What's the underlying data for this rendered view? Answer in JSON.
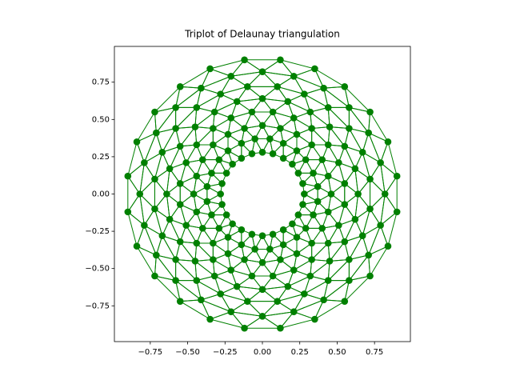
{
  "chart_data": {
    "type": "triplot",
    "title": "Triplot of Delaunay triangulation",
    "color": "#008000",
    "xlim": [
      -0.99,
      0.99
    ],
    "ylim": [
      -0.99,
      0.99
    ],
    "xticks": [
      {
        "value": -0.75,
        "label": "−0.75"
      },
      {
        "value": -0.5,
        "label": "−0.50"
      },
      {
        "value": -0.25,
        "label": "−0.25"
      },
      {
        "value": 0,
        "label": "0.00"
      },
      0.25,
      {
        "value": 0.5,
        "label": "0.50"
      },
      0.75
    ],
    "yticks": [
      {
        "value": -0.75,
        "label": "−0.75"
      },
      {
        "value": -0.5,
        "label": "−0.50"
      },
      {
        "value": -0.25,
        "label": "−0.25"
      },
      {
        "value": 0,
        "label": "0.00"
      },
      0.25,
      {
        "value": 0.5,
        "label": "0.50"
      },
      0.75
    ],
    "x": [
      [
        0.28,
        0.27,
        0.24,
        0.2,
        0.14,
        0.07,
        0,
        -0.07,
        -0.14,
        -0.2,
        -0.24,
        -0.27,
        -0.28,
        -0.27,
        -0.24,
        -0.2,
        -0.14,
        -0.07,
        0,
        0.07,
        0.14,
        0.2,
        0.24,
        0.27
      ],
      [
        0.37,
        0.34,
        0.29,
        0.23,
        0.14,
        0.05,
        -0.05,
        -0.14,
        -0.23,
        -0.29,
        -0.34,
        -0.37,
        -0.37,
        -0.34,
        -0.29,
        -0.23,
        -0.14,
        -0.05,
        0.05,
        0.14,
        0.23,
        0.29,
        0.34,
        0.37
      ],
      [
        0.46,
        0.44,
        0.4,
        0.33,
        0.23,
        0.12,
        0,
        -0.12,
        -0.23,
        -0.33,
        -0.4,
        -0.44,
        -0.46,
        -0.44,
        -0.4,
        -0.33,
        -0.23,
        -0.12,
        0,
        0.12,
        0.23,
        0.33,
        0.4,
        0.44
      ],
      [
        0.55,
        0.51,
        0.44,
        0.33,
        0.21,
        0.07,
        -0.07,
        -0.21,
        -0.33,
        -0.44,
        -0.51,
        -0.55,
        -0.55,
        -0.51,
        -0.44,
        -0.33,
        -0.21,
        -0.07,
        0.07,
        0.21,
        0.33,
        0.44,
        0.51,
        0.55
      ],
      [
        0.64,
        0.62,
        0.55,
        0.45,
        0.32,
        0.17,
        0,
        -0.17,
        -0.32,
        -0.45,
        -0.55,
        -0.62,
        -0.64,
        -0.62,
        -0.55,
        -0.45,
        -0.32,
        -0.17,
        0,
        0.17,
        0.32,
        0.45,
        0.55,
        0.62
      ],
      [
        0.72,
        0.67,
        0.58,
        0.44,
        0.28,
        0.1,
        -0.1,
        -0.28,
        -0.44,
        -0.58,
        -0.67,
        -0.72,
        -0.72,
        -0.67,
        -0.58,
        -0.44,
        -0.28,
        -0.1,
        0.1,
        0.28,
        0.44,
        0.58,
        0.67,
        0.72
      ],
      [
        0.82,
        0.79,
        0.71,
        0.58,
        0.41,
        0.21,
        0,
        -0.21,
        -0.41,
        -0.58,
        -0.71,
        -0.79,
        -0.82,
        -0.79,
        -0.71,
        -0.58,
        -0.41,
        -0.21,
        0,
        0.21,
        0.41,
        0.58,
        0.71,
        0.79
      ],
      [
        0.9,
        0.84,
        0.72,
        0.55,
        0.35,
        0.12,
        -0.12,
        -0.35,
        -0.55,
        -0.72,
        -0.84,
        -0.9,
        -0.9,
        -0.84,
        -0.72,
        -0.55,
        -0.35,
        -0.12,
        0.12,
        0.35,
        0.55,
        0.72,
        0.84,
        0.9
      ]
    ],
    "y": [
      [
        0,
        0.07,
        0.14,
        0.2,
        0.24,
        0.27,
        0.28,
        0.27,
        0.24,
        0.2,
        0.14,
        0.07,
        0,
        -0.07,
        -0.14,
        -0.2,
        -0.24,
        -0.27,
        -0.28,
        -0.27,
        -0.24,
        -0.2,
        -0.14,
        -0.07
      ],
      [
        0.05,
        0.14,
        0.23,
        0.29,
        0.34,
        0.37,
        0.37,
        0.34,
        0.29,
        0.23,
        0.14,
        0.05,
        -0.05,
        -0.14,
        -0.23,
        -0.29,
        -0.34,
        -0.37,
        -0.37,
        -0.34,
        -0.29,
        -0.23,
        -0.14,
        -0.05
      ],
      [
        0,
        0.12,
        0.23,
        0.33,
        0.4,
        0.44,
        0.46,
        0.44,
        0.4,
        0.33,
        0.23,
        0.12,
        0,
        -0.12,
        -0.23,
        -0.33,
        -0.4,
        -0.44,
        -0.46,
        -0.44,
        -0.4,
        -0.33,
        -0.23,
        -0.12
      ],
      [
        0.07,
        0.21,
        0.33,
        0.44,
        0.51,
        0.55,
        0.55,
        0.51,
        0.44,
        0.33,
        0.21,
        0.07,
        -0.07,
        -0.21,
        -0.33,
        -0.44,
        -0.51,
        -0.55,
        -0.55,
        -0.51,
        -0.44,
        -0.33,
        -0.21,
        -0.07
      ],
      [
        0,
        0.17,
        0.32,
        0.45,
        0.55,
        0.62,
        0.64,
        0.62,
        0.55,
        0.45,
        0.32,
        0.17,
        0,
        -0.17,
        -0.32,
        -0.45,
        -0.55,
        -0.62,
        -0.64,
        -0.62,
        -0.55,
        -0.45,
        -0.32,
        -0.17
      ],
      [
        0.1,
        0.28,
        0.44,
        0.58,
        0.67,
        0.72,
        0.72,
        0.67,
        0.58,
        0.44,
        0.28,
        0.1,
        -0.1,
        -0.28,
        -0.44,
        -0.58,
        -0.67,
        -0.72,
        -0.72,
        -0.67,
        -0.58,
        -0.44,
        -0.28,
        -0.1
      ],
      [
        0,
        0.21,
        0.41,
        0.58,
        0.71,
        0.79,
        0.82,
        0.79,
        0.71,
        0.58,
        0.41,
        0.21,
        0,
        -0.21,
        -0.41,
        -0.58,
        -0.71,
        -0.79,
        -0.82,
        -0.79,
        -0.71,
        -0.58,
        -0.41,
        -0.21
      ],
      [
        0.12,
        0.35,
        0.55,
        0.72,
        0.84,
        0.9,
        0.9,
        0.84,
        0.72,
        0.55,
        0.35,
        0.12,
        -0.12,
        -0.35,
        -0.55,
        -0.72,
        -0.84,
        -0.9,
        -0.9,
        -0.84,
        -0.72,
        -0.55,
        -0.35,
        -0.12
      ]
    ]
  }
}
